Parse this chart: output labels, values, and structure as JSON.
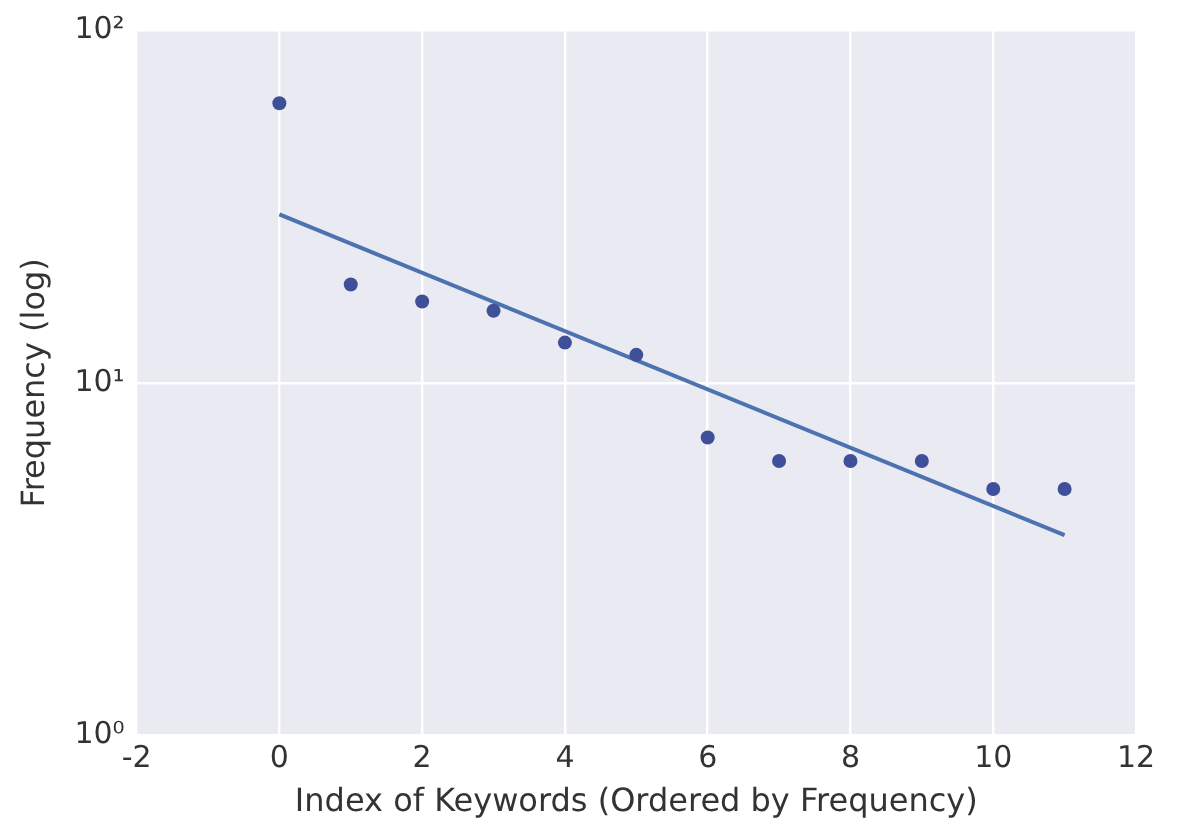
{
  "chart_data": {
    "type": "scatter",
    "xlabel": "Index of Keywords (Ordered by Frequency)",
    "ylabel": "Frequency (log)",
    "log": "y",
    "grid": true,
    "legend": false,
    "marker": "circle",
    "xlim": [
      -2,
      12
    ],
    "xticks": [
      -2,
      0,
      2,
      4,
      6,
      8,
      10,
      12
    ],
    "ylim": [
      1,
      100
    ],
    "yticks": [
      {
        "value": 1,
        "label": "10⁰"
      },
      {
        "value": 10,
        "label": "10¹"
      },
      {
        "value": 100,
        "label": "10²"
      }
    ],
    "series": [
      {
        "color": "#3f4f9a",
        "x": [
          0,
          1,
          2,
          3,
          4,
          5,
          6,
          7,
          8,
          9,
          10,
          11
        ],
        "values": [
          62,
          19,
          17,
          16,
          13,
          12,
          7,
          6,
          6,
          6,
          5,
          5
        ]
      },
      {
        "type": "line",
        "marker": "none",
        "color": "#4c72b0",
        "x": [
          0,
          11
        ],
        "values": [
          30,
          3.7
        ]
      }
    ]
  }
}
